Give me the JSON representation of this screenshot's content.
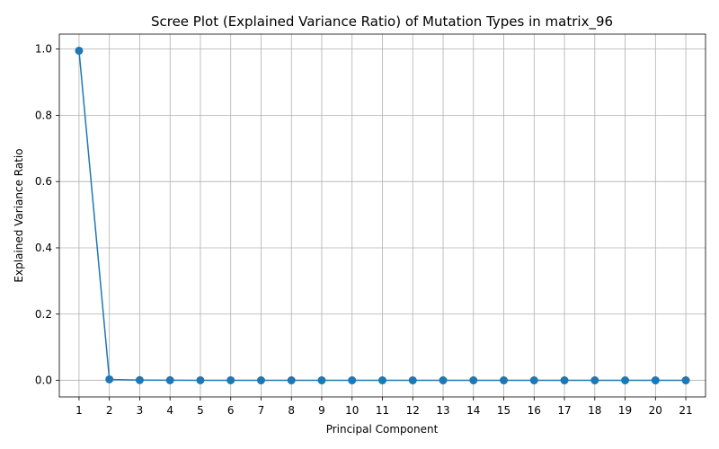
{
  "chart_data": {
    "type": "line",
    "title": "Scree Plot (Explained Variance Ratio) of Mutation Types in matrix_96",
    "xlabel": "Principal Component",
    "ylabel": "Explained Variance Ratio",
    "x": [
      1,
      2,
      3,
      4,
      5,
      6,
      7,
      8,
      9,
      10,
      11,
      12,
      13,
      14,
      15,
      16,
      17,
      18,
      19,
      20,
      21
    ],
    "series": [
      {
        "values": [
          0.995,
          0.003,
          0.0008,
          0.0004,
          0.0003,
          0.0002,
          0.0001,
          0.0001,
          0.0001,
          0.0001,
          0.0001,
          0.0,
          0.0,
          0.0,
          0.0,
          0.0,
          0.0,
          0.0,
          0.0,
          0.0,
          0.0
        ],
        "color": "#1f77b4",
        "marker": "circle"
      }
    ],
    "xticks": [
      "1",
      "2",
      "3",
      "4",
      "5",
      "6",
      "7",
      "8",
      "9",
      "10",
      "11",
      "12",
      "13",
      "14",
      "15",
      "16",
      "17",
      "18",
      "19",
      "20",
      "21"
    ],
    "yticks": [
      "0.0",
      "0.2",
      "0.4",
      "0.6",
      "0.8",
      "1.0"
    ],
    "xlim": [
      0.35,
      21.65
    ],
    "ylim": [
      -0.05,
      1.045
    ],
    "grid": true
  }
}
